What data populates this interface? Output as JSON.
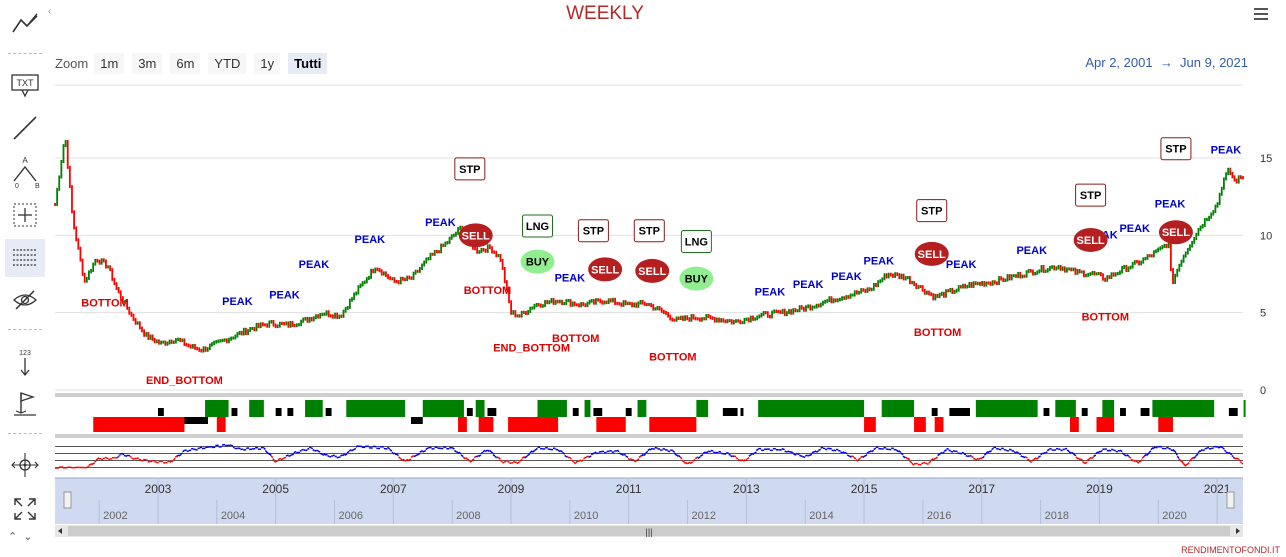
{
  "title": "WEEKLY",
  "zoom": {
    "label": "Zoom",
    "buttons": [
      "1m",
      "3m",
      "6m",
      "YTD",
      "1y",
      "Tutti"
    ],
    "selected": "Tutti"
  },
  "range": {
    "from": "Apr 2, 2001",
    "arrow": "→",
    "to": "Jun 9, 2021"
  },
  "credit": "RENDIMENTOFONDI.IT",
  "toolbar": {
    "text_tool_label": "TXT",
    "measure_label": "123",
    "fib_a_label": "A",
    "fib_o_label": "0",
    "fib_b_label": "B",
    "icons": [
      "indicators-icon",
      "text-annotation-icon",
      "line-tool-icon",
      "fibonacci-icon",
      "crosshair-icon",
      "grid-lines-icon",
      "hide-icon",
      "measure-icon",
      "flag-icon",
      "pan-icon",
      "fullscreen-icon"
    ]
  },
  "colors": {
    "up": "#008000",
    "down": "#ff0000",
    "peak": "#0000cc",
    "bottom": "#e00000",
    "sell_fill": "#b51f1f",
    "buy_fill": "#90ee90",
    "osc_line": "#0000ee",
    "navigator_fill": "#cfd9ef"
  },
  "chart_data": {
    "type": "line",
    "x_start": 2001.25,
    "x_end": 2021.44,
    "y_axis": {
      "ticks": [
        0,
        5,
        10,
        15
      ],
      "min": -0.5,
      "max": 18
    },
    "price": [
      [
        2001.25,
        12.0
      ],
      [
        2001.42,
        16.5
      ],
      [
        2001.55,
        11.0
      ],
      [
        2001.75,
        7.0
      ],
      [
        2001.95,
        8.5
      ],
      [
        2002.15,
        8.0
      ],
      [
        2002.3,
        6.5
      ],
      [
        2002.55,
        4.8
      ],
      [
        2002.8,
        3.5
      ],
      [
        2003.05,
        3.0
      ],
      [
        2003.3,
        3.3
      ],
      [
        2003.55,
        2.8
      ],
      [
        2003.75,
        2.6
      ],
      [
        2004.0,
        3.0
      ],
      [
        2004.3,
        3.5
      ],
      [
        2004.6,
        4.0
      ],
      [
        2004.9,
        4.3
      ],
      [
        2005.2,
        4.2
      ],
      [
        2005.5,
        4.5
      ],
      [
        2005.8,
        5.0
      ],
      [
        2006.1,
        4.8
      ],
      [
        2006.4,
        6.5
      ],
      [
        2006.7,
        8.0
      ],
      [
        2007.0,
        7.0
      ],
      [
        2007.3,
        7.2
      ],
      [
        2007.6,
        8.5
      ],
      [
        2007.9,
        9.5
      ],
      [
        2008.15,
        10.5
      ],
      [
        2008.4,
        9.0
      ],
      [
        2008.65,
        9.2
      ],
      [
        2008.82,
        8.5
      ],
      [
        2009.0,
        5.0
      ],
      [
        2009.15,
        4.8
      ],
      [
        2009.4,
        5.5
      ],
      [
        2009.8,
        5.8
      ],
      [
        2010.2,
        5.5
      ],
      [
        2010.6,
        5.8
      ],
      [
        2011.0,
        5.5
      ],
      [
        2011.3,
        5.6
      ],
      [
        2011.6,
        5.0
      ],
      [
        2011.8,
        4.5
      ],
      [
        2012.1,
        4.7
      ],
      [
        2012.5,
        4.6
      ],
      [
        2012.8,
        4.4
      ],
      [
        2013.2,
        4.8
      ],
      [
        2013.6,
        5.0
      ],
      [
        2014.0,
        5.3
      ],
      [
        2014.4,
        5.8
      ],
      [
        2014.8,
        6.2
      ],
      [
        2015.1,
        6.5
      ],
      [
        2015.4,
        7.5
      ],
      [
        2015.7,
        7.3
      ],
      [
        2016.0,
        6.5
      ],
      [
        2016.2,
        6.0
      ],
      [
        2016.5,
        6.4
      ],
      [
        2016.8,
        6.8
      ],
      [
        2017.2,
        7.0
      ],
      [
        2017.6,
        7.4
      ],
      [
        2018.0,
        7.8
      ],
      [
        2018.3,
        8.0
      ],
      [
        2018.6,
        7.6
      ],
      [
        2018.9,
        7.5
      ],
      [
        2019.1,
        7.2
      ],
      [
        2019.4,
        7.8
      ],
      [
        2019.7,
        8.3
      ],
      [
        2020.0,
        9.0
      ],
      [
        2020.2,
        9.6
      ],
      [
        2020.22,
        6.8
      ],
      [
        2020.4,
        8.5
      ],
      [
        2020.7,
        10.5
      ],
      [
        2021.0,
        12.0
      ],
      [
        2021.1,
        13.5
      ],
      [
        2021.2,
        14.2
      ],
      [
        2021.3,
        13.5
      ],
      [
        2021.44,
        13.8
      ]
    ],
    "labels": [
      {
        "text": "BOTTOM",
        "kind": "bottom",
        "x": 2002.1,
        "y": 5.4
      },
      {
        "text": "END_BOTTOM",
        "kind": "bottom",
        "x": 2003.45,
        "y": 0.4
      },
      {
        "text": "PEAK",
        "kind": "peak",
        "x": 2004.35,
        "y": 5.5
      },
      {
        "text": "PEAK",
        "kind": "peak",
        "x": 2005.15,
        "y": 5.9
      },
      {
        "text": "PEAK",
        "kind": "peak",
        "x": 2005.65,
        "y": 7.9
      },
      {
        "text": "PEAK",
        "kind": "peak",
        "x": 2006.6,
        "y": 9.5
      },
      {
        "text": "PEAK",
        "kind": "peak",
        "x": 2007.8,
        "y": 10.6
      },
      {
        "text": "BOTTOM",
        "kind": "bottom",
        "x": 2008.6,
        "y": 6.2
      },
      {
        "text": "END_BOTTOM",
        "kind": "bottom",
        "x": 2009.35,
        "y": 2.5
      },
      {
        "text": "BOTTOM",
        "kind": "bottom",
        "x": 2010.1,
        "y": 3.1
      },
      {
        "text": "PEAK",
        "kind": "peak",
        "x": 2010.0,
        "y": 7.0
      },
      {
        "text": "BOTTOM",
        "kind": "bottom",
        "x": 2011.75,
        "y": 1.9
      },
      {
        "text": "PEAK",
        "kind": "peak",
        "x": 2013.4,
        "y": 6.1
      },
      {
        "text": "PEAK",
        "kind": "peak",
        "x": 2014.05,
        "y": 6.6
      },
      {
        "text": "PEAK",
        "kind": "peak",
        "x": 2014.7,
        "y": 7.1
      },
      {
        "text": "PEAK",
        "kind": "peak",
        "x": 2015.25,
        "y": 8.1
      },
      {
        "text": "BOTTOM",
        "kind": "bottom",
        "x": 2016.25,
        "y": 3.5
      },
      {
        "text": "PEAK",
        "kind": "peak",
        "x": 2016.65,
        "y": 7.9
      },
      {
        "text": "PEAK",
        "kind": "peak",
        "x": 2017.85,
        "y": 8.8
      },
      {
        "text": "PEAK",
        "kind": "peak",
        "x": 2019.05,
        "y": 9.8
      },
      {
        "text": "BOTTOM",
        "kind": "bottom",
        "x": 2019.1,
        "y": 4.5
      },
      {
        "text": "PEAK",
        "kind": "peak",
        "x": 2019.6,
        "y": 10.2
      },
      {
        "text": "PEAK",
        "kind": "peak",
        "x": 2020.2,
        "y": 11.8
      },
      {
        "text": "PEAK",
        "kind": "peak",
        "x": 2021.15,
        "y": 15.3
      }
    ],
    "markers": [
      {
        "text": "STP",
        "type": "stp",
        "x": 2008.3,
        "y": 14.3
      },
      {
        "text": "SELL",
        "type": "sell",
        "x": 2008.4,
        "y": 10.0
      },
      {
        "text": "LNG",
        "type": "lng",
        "x": 2009.45,
        "y": 10.6
      },
      {
        "text": "BUY",
        "type": "buy",
        "x": 2009.45,
        "y": 8.3
      },
      {
        "text": "STP",
        "type": "stp",
        "x": 2010.4,
        "y": 10.3
      },
      {
        "text": "SELL",
        "type": "sell",
        "x": 2010.6,
        "y": 7.8
      },
      {
        "text": "STP",
        "type": "stp",
        "x": 2011.35,
        "y": 10.3
      },
      {
        "text": "SELL",
        "type": "sell",
        "x": 2011.4,
        "y": 7.7
      },
      {
        "text": "LNG",
        "type": "lng",
        "x": 2012.15,
        "y": 9.6
      },
      {
        "text": "BUY",
        "type": "buy",
        "x": 2012.15,
        "y": 7.2
      },
      {
        "text": "STP",
        "type": "stp",
        "x": 2016.15,
        "y": 11.6
      },
      {
        "text": "SELL",
        "type": "sell",
        "x": 2016.15,
        "y": 8.8
      },
      {
        "text": "STP",
        "type": "stp",
        "x": 2018.85,
        "y": 12.6
      },
      {
        "text": "SELL",
        "type": "sell",
        "x": 2018.85,
        "y": 9.7
      },
      {
        "text": "STP",
        "type": "stp",
        "x": 2020.3,
        "y": 15.6
      },
      {
        "text": "SELL",
        "type": "sell",
        "x": 2020.3,
        "y": 10.2
      }
    ],
    "signal_bands": {
      "top": [
        [
          "black",
          2003.0,
          2003.1
        ],
        [
          "green",
          2003.8,
          2004.2
        ],
        [
          "black",
          2004.25,
          2004.35
        ],
        [
          "green",
          2004.55,
          2004.8
        ],
        [
          "black",
          2005.0,
          2005.1
        ],
        [
          "black",
          2005.2,
          2005.3
        ],
        [
          "green",
          2005.5,
          2005.8
        ],
        [
          "black",
          2005.85,
          2005.95
        ],
        [
          "green",
          2006.2,
          2007.2
        ],
        [
          "green",
          2007.5,
          2008.2
        ],
        [
          "black",
          2008.25,
          2008.35
        ],
        [
          "green",
          2008.4,
          2008.55
        ],
        [
          "black",
          2008.6,
          2008.75
        ],
        [
          "green",
          2009.45,
          2009.95
        ],
        [
          "black",
          2010.05,
          2010.15
        ],
        [
          "green",
          2010.25,
          2010.35
        ],
        [
          "black",
          2010.4,
          2010.55
        ],
        [
          "black",
          2010.95,
          2011.05
        ],
        [
          "green",
          2011.15,
          2011.3
        ],
        [
          "green",
          2012.15,
          2012.35
        ],
        [
          "black",
          2012.6,
          2012.85
        ],
        [
          "black",
          2012.9,
          2012.95
        ],
        [
          "green",
          2013.2,
          2015.0
        ],
        [
          "green",
          2015.3,
          2015.85
        ],
        [
          "black",
          2016.15,
          2016.25
        ],
        [
          "black",
          2016.45,
          2016.8
        ],
        [
          "green",
          2016.9,
          2017.95
        ],
        [
          "black",
          2018.05,
          2018.15
        ],
        [
          "green",
          2018.25,
          2018.6
        ],
        [
          "black",
          2018.7,
          2018.8
        ],
        [
          "green",
          2019.05,
          2019.25
        ],
        [
          "black",
          2019.35,
          2019.45
        ],
        [
          "black",
          2019.7,
          2019.85
        ],
        [
          "green",
          2019.9,
          2020.95
        ],
        [
          "black",
          2021.2,
          2021.35
        ],
        [
          "green",
          2021.45,
          2022.35
        ]
      ],
      "bottom": [
        [
          "red",
          2001.9,
          2003.45
        ],
        [
          "black",
          2003.45,
          2003.85
        ],
        [
          "red",
          2004.0,
          2004.15
        ],
        [
          "black",
          2007.3,
          2007.5
        ],
        [
          "red",
          2008.1,
          2008.25
        ],
        [
          "red",
          2008.45,
          2008.7
        ],
        [
          "red",
          2008.95,
          2009.8
        ],
        [
          "red",
          2010.45,
          2010.95
        ],
        [
          "red",
          2011.35,
          2012.15
        ],
        [
          "red",
          2015.0,
          2015.2
        ],
        [
          "red",
          2015.85,
          2016.05
        ],
        [
          "red",
          2016.2,
          2016.35
        ],
        [
          "red",
          2018.5,
          2018.65
        ],
        [
          "red",
          2018.95,
          2019.25
        ],
        [
          "red",
          2020.0,
          2020.25
        ]
      ]
    },
    "oscillator": {
      "levels": [
        0.15,
        0.38,
        0.62,
        0.85
      ],
      "values": [
        [
          2001.25,
          0.15
        ],
        [
          2001.8,
          0.15
        ],
        [
          2002.0,
          0.45
        ],
        [
          2002.25,
          0.45
        ],
        [
          2002.4,
          0.6
        ],
        [
          2002.6,
          0.45
        ],
        [
          2002.9,
          0.35
        ],
        [
          2003.2,
          0.32
        ],
        [
          2003.45,
          0.7
        ],
        [
          2003.75,
          0.8
        ],
        [
          2004.2,
          0.9
        ],
        [
          2004.4,
          0.75
        ],
        [
          2004.8,
          0.8
        ],
        [
          2005.0,
          0.35
        ],
        [
          2005.35,
          0.65
        ],
        [
          2005.6,
          0.8
        ],
        [
          2005.85,
          0.55
        ],
        [
          2006.1,
          0.5
        ],
        [
          2006.4,
          0.85
        ],
        [
          2006.9,
          0.8
        ],
        [
          2007.2,
          0.35
        ],
        [
          2007.6,
          0.8
        ],
        [
          2008.0,
          0.8
        ],
        [
          2008.3,
          0.35
        ],
        [
          2008.6,
          0.75
        ],
        [
          2008.85,
          0.35
        ],
        [
          2009.1,
          0.3
        ],
        [
          2009.45,
          0.8
        ],
        [
          2009.8,
          0.75
        ],
        [
          2010.1,
          0.3
        ],
        [
          2010.45,
          0.65
        ],
        [
          2010.8,
          0.7
        ],
        [
          2011.1,
          0.35
        ],
        [
          2011.4,
          0.8
        ],
        [
          2011.75,
          0.7
        ],
        [
          2012.0,
          0.25
        ],
        [
          2012.35,
          0.7
        ],
        [
          2012.7,
          0.6
        ],
        [
          2012.95,
          0.35
        ],
        [
          2013.2,
          0.75
        ],
        [
          2013.6,
          0.75
        ],
        [
          2014.0,
          0.5
        ],
        [
          2014.3,
          0.8
        ],
        [
          2014.6,
          0.7
        ],
        [
          2014.9,
          0.4
        ],
        [
          2015.2,
          0.8
        ],
        [
          2015.55,
          0.75
        ],
        [
          2015.85,
          0.25
        ],
        [
          2016.1,
          0.3
        ],
        [
          2016.4,
          0.75
        ],
        [
          2016.7,
          0.6
        ],
        [
          2016.95,
          0.4
        ],
        [
          2017.2,
          0.8
        ],
        [
          2017.55,
          0.7
        ],
        [
          2017.85,
          0.35
        ],
        [
          2018.15,
          0.75
        ],
        [
          2018.45,
          0.75
        ],
        [
          2018.75,
          0.3
        ],
        [
          2019.05,
          0.75
        ],
        [
          2019.35,
          0.7
        ],
        [
          2019.65,
          0.3
        ],
        [
          2019.95,
          0.85
        ],
        [
          2020.25,
          0.75
        ],
        [
          2020.45,
          0.2
        ],
        [
          2020.75,
          0.75
        ],
        [
          2021.05,
          0.85
        ],
        [
          2021.25,
          0.55
        ],
        [
          2021.44,
          0.3
        ]
      ]
    },
    "navigator": {
      "major_ticks": [
        {
          "label": "2003",
          "x": 2003.0
        },
        {
          "label": "2005",
          "x": 2005.0
        },
        {
          "label": "2007",
          "x": 2007.0
        },
        {
          "label": "2009",
          "x": 2009.0
        },
        {
          "label": "2011",
          "x": 2011.0
        },
        {
          "label": "2013",
          "x": 2013.0
        },
        {
          "label": "2015",
          "x": 2015.0
        },
        {
          "label": "2017",
          "x": 2017.0
        },
        {
          "label": "2019",
          "x": 2019.0
        },
        {
          "label": "2021",
          "x": 2021.0
        }
      ],
      "minor_ticks": [
        {
          "label": "2002",
          "x": 2002.0
        },
        {
          "label": "2004",
          "x": 2004.0
        },
        {
          "label": "2006",
          "x": 2006.0
        },
        {
          "label": "2008",
          "x": 2008.0
        },
        {
          "label": "2010",
          "x": 2010.0
        },
        {
          "label": "2012",
          "x": 2012.0
        },
        {
          "label": "2014",
          "x": 2014.0
        },
        {
          "label": "2016",
          "x": 2016.0
        },
        {
          "label": "2018",
          "x": 2018.0
        },
        {
          "label": "2020",
          "x": 2020.0
        }
      ]
    }
  }
}
